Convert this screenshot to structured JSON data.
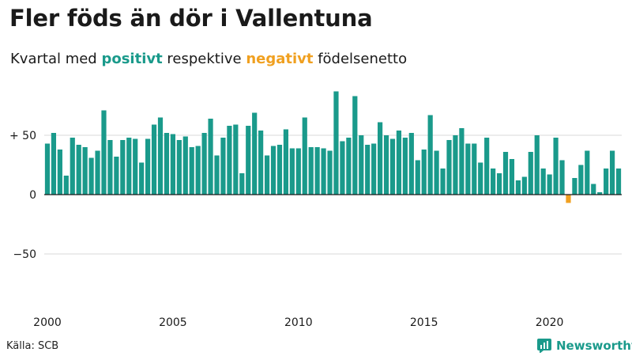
{
  "title": "Fler föds än dör i Vallentuna",
  "subtitle": {
    "prefix": "Kvartal med ",
    "positive_word": "positivt",
    "middle": " respektive ",
    "negative_word": "negativt",
    "suffix": " födelsenetto"
  },
  "source": "Källa: SCB",
  "brand": "Newsworthy",
  "colors": {
    "positive": "#1a9a8b",
    "negative": "#f0a020",
    "grid": "#d9d9d9",
    "axis": "#1a1a1a"
  },
  "chart_data": {
    "type": "bar",
    "x_start": "2000 Q1",
    "x_ticks": [
      "2000",
      "2005",
      "2010",
      "2015",
      "2020"
    ],
    "y_ticks": [
      {
        "value": 50,
        "label": "+ 50"
      },
      {
        "value": 0,
        "label": "0"
      },
      {
        "value": -50,
        "label": "−50"
      }
    ],
    "ylim": [
      -95,
      90
    ],
    "values": [
      43,
      52,
      38,
      16,
      48,
      42,
      40,
      31,
      37,
      71,
      46,
      32,
      46,
      48,
      47,
      27,
      47,
      59,
      65,
      52,
      51,
      46,
      49,
      40,
      41,
      52,
      64,
      33,
      48,
      58,
      59,
      18,
      58,
      69,
      54,
      33,
      41,
      42,
      55,
      39,
      39,
      65,
      40,
      40,
      39,
      37,
      87,
      45,
      48,
      83,
      50,
      42,
      43,
      61,
      50,
      47,
      54,
      48,
      52,
      29,
      38,
      67,
      37,
      22,
      46,
      50,
      56,
      43,
      43,
      27,
      48,
      22,
      18,
      36,
      30,
      12,
      15,
      36,
      50,
      22,
      17,
      48,
      29,
      -7,
      14,
      25,
      37,
      9,
      2,
      22,
      37,
      22
    ]
  }
}
